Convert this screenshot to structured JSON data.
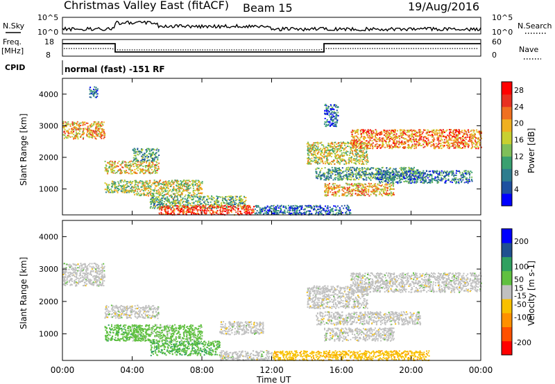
{
  "header": {
    "title": "Christmas Valley East (fitACF)",
    "beam": "Beam 15",
    "date": "19/Aug/2016"
  },
  "noise_panel": {
    "left_label": "N.Sky",
    "right_label": "N.Search",
    "ticks_left": [
      "10^5",
      "10^0"
    ],
    "ticks_right": [
      "10^5",
      "10^0"
    ]
  },
  "freq_panel": {
    "left_label_1": "Freq.",
    "left_label_2": "[MHz]",
    "left_ticks": [
      "18",
      "8"
    ],
    "right_label": "Nave",
    "right_ticks": [
      "60",
      "0"
    ]
  },
  "cpid": {
    "label": "CPID",
    "text": "normal (fast) -151 RF"
  },
  "chart_data": [
    {
      "type": "heatmap",
      "name": "power",
      "ylabel": "Slant Range [km]",
      "yticks": [
        "4000",
        "3000",
        "2000",
        "1000"
      ],
      "ylim": [
        180,
        4500
      ],
      "colorbar_label": "Power [dB]",
      "colorbar_ticks": [
        "28",
        "24",
        "20",
        "16",
        "12",
        "8",
        "4"
      ],
      "colorbar_range": [
        0,
        30
      ],
      "colors": [
        "#0000ff",
        "#1e50a0",
        "#2e7d8e",
        "#3aa070",
        "#7fbf5a",
        "#c8d030",
        "#f0b020",
        "#f07020",
        "#e83020",
        "#ff0000"
      ],
      "xticks": [
        "00:00",
        "04:00",
        "08:00",
        "12:00",
        "16:00",
        "20:00",
        "00:00"
      ],
      "scatter_bands": [
        {
          "t": [
            0,
            2.4
          ],
          "range": [
            2600,
            3150
          ],
          "db": 20
        },
        {
          "t": [
            1.5,
            2.0
          ],
          "range": [
            3900,
            4250
          ],
          "db": 6
        },
        {
          "t": [
            2.4,
            5.5
          ],
          "range": [
            1500,
            1900
          ],
          "db": 18
        },
        {
          "t": [
            4.0,
            5.5
          ],
          "range": [
            1900,
            2300
          ],
          "db": 10
        },
        {
          "t": [
            2.4,
            4.0
          ],
          "range": [
            900,
            1300
          ],
          "db": 14
        },
        {
          "t": [
            4.0,
            8.0
          ],
          "range": [
            800,
            1300
          ],
          "db": 16
        },
        {
          "t": [
            5.0,
            10.5
          ],
          "range": [
            400,
            800
          ],
          "db": 12
        },
        {
          "t": [
            5.5,
            11.0
          ],
          "range": [
            200,
            500
          ],
          "db": 26
        },
        {
          "t": [
            11.0,
            16.5
          ],
          "range": [
            200,
            500
          ],
          "db": 6
        },
        {
          "t": [
            14.0,
            17.5
          ],
          "range": [
            1800,
            2500
          ],
          "db": 16
        },
        {
          "t": [
            14.5,
            20.5
          ],
          "range": [
            1300,
            1700
          ],
          "db": 10
        },
        {
          "t": [
            15.0,
            19.0
          ],
          "range": [
            800,
            1200
          ],
          "db": 20
        },
        {
          "t": [
            15.0,
            15.8
          ],
          "range": [
            3000,
            3700
          ],
          "db": 6
        },
        {
          "t": [
            16.5,
            24.0
          ],
          "range": [
            2300,
            2900
          ],
          "db": 22
        },
        {
          "t": [
            18.0,
            23.5
          ],
          "range": [
            1200,
            1600
          ],
          "db": 8
        }
      ]
    },
    {
      "type": "heatmap",
      "name": "velocity",
      "ylabel": "Slant Range [km]",
      "yticks": [
        "4000",
        "3000",
        "2000",
        "1000"
      ],
      "ylim": [
        180,
        4500
      ],
      "colorbar_label": "Velocity [m s-1]",
      "colorbar_ticks": [
        "200",
        "100",
        "50",
        "15",
        "-15",
        "-50",
        "-100",
        "-200"
      ],
      "colorbar_range": [
        -250,
        250
      ],
      "colors": [
        "#ff0000",
        "#ff5000",
        "#ff9000",
        "#f8c000",
        "#c0c0c0",
        "#60c040",
        "#30a060",
        "#205090",
        "#0000ff"
      ],
      "xticks": [
        "00:00",
        "04:00",
        "08:00",
        "12:00",
        "16:00",
        "20:00",
        "00:00"
      ],
      "xlabel": "Time UT",
      "scatter_bands": [
        {
          "t": [
            0,
            2.4
          ],
          "range": [
            2500,
            3200
          ],
          "ms": 0
        },
        {
          "t": [
            2.4,
            5.5
          ],
          "range": [
            1500,
            1900
          ],
          "ms": 0
        },
        {
          "t": [
            2.4,
            4.5
          ],
          "range": [
            800,
            1300
          ],
          "ms": 60
        },
        {
          "t": [
            4.0,
            8.0
          ],
          "range": [
            800,
            1300
          ],
          "ms": 50
        },
        {
          "t": [
            5.0,
            9.0
          ],
          "range": [
            350,
            800
          ],
          "ms": 70
        },
        {
          "t": [
            9.0,
            11.5
          ],
          "range": [
            1000,
            1400
          ],
          "ms": 0
        },
        {
          "t": [
            9.0,
            12.0
          ],
          "range": [
            200,
            500
          ],
          "ms": 0
        },
        {
          "t": [
            12.0,
            21.0
          ],
          "range": [
            200,
            500
          ],
          "ms": -60
        },
        {
          "t": [
            14.0,
            17.5
          ],
          "range": [
            1800,
            2500
          ],
          "ms": 0
        },
        {
          "t": [
            14.5,
            20.5
          ],
          "range": [
            1300,
            1700
          ],
          "ms": 0
        },
        {
          "t": [
            15.0,
            19.0
          ],
          "range": [
            800,
            1200
          ],
          "ms": 0
        },
        {
          "t": [
            16.5,
            24.0
          ],
          "range": [
            2300,
            2900
          ],
          "ms": 0
        }
      ]
    }
  ]
}
